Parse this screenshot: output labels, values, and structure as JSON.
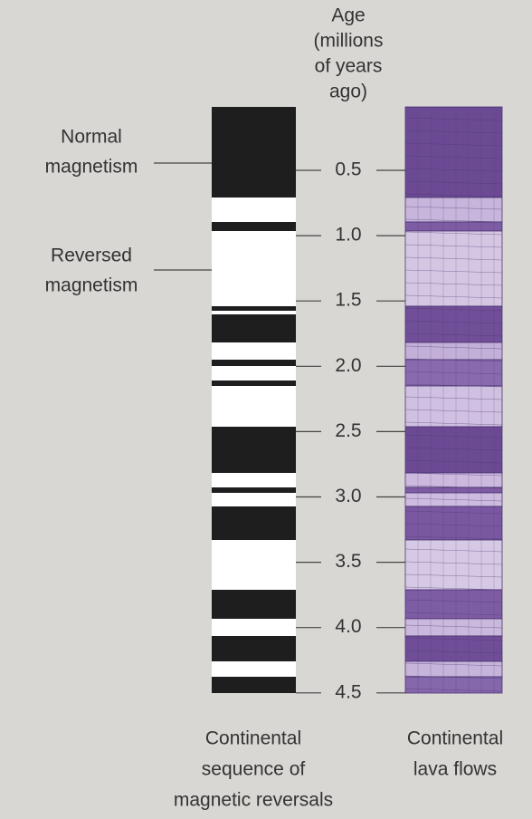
{
  "axis": {
    "title": [
      "Age",
      "(millions",
      "of years",
      "ago)"
    ],
    "ticks": [
      "0.5",
      "1.0",
      "1.5",
      "2.0",
      "2.5",
      "3.0",
      "3.5",
      "4.0",
      "4.5"
    ]
  },
  "labels": {
    "normal": [
      "Normal",
      "magnetism"
    ],
    "reversed": [
      "Reversed",
      "magnetism"
    ]
  },
  "captions": {
    "left": [
      "Continental",
      "sequence of",
      "magnetic reversals"
    ],
    "right": [
      "Continental",
      "lava flows"
    ]
  }
}
